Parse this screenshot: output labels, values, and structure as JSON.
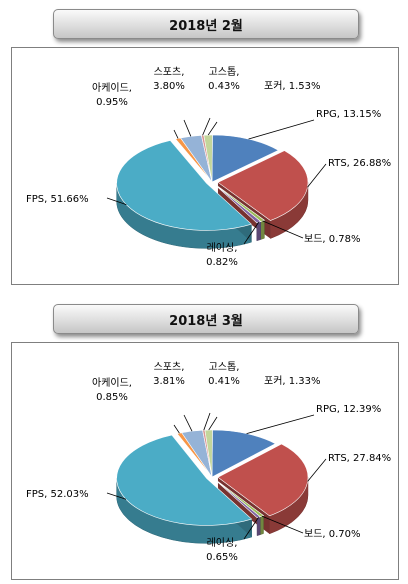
{
  "chart_data": [
    {
      "type": "pie",
      "title": "2018년 2월",
      "slices": [
        {
          "label": "RPG",
          "value": 13.15,
          "text": "RPG, 13.15%",
          "color": "#4f81bd"
        },
        {
          "label": "RTS",
          "value": 26.88,
          "text": "RTS, 26.88%",
          "color": "#c0504d"
        },
        {
          "label": "보드",
          "value": 0.78,
          "text": "보드, 0.78%",
          "color": "#9bbb59"
        },
        {
          "label": "레이싱",
          "value": 0.82,
          "text": "레이싱,|0.82%",
          "color": "#8064a2"
        },
        {
          "label": "FPS",
          "value": 51.66,
          "text": "FPS, 51.66%",
          "color": "#4bacc6"
        },
        {
          "label": "아케이드",
          "value": 0.95,
          "text": "아케이드,|0.95%",
          "color": "#f79646"
        },
        {
          "label": "스포츠",
          "value": 3.8,
          "text": "스포츠,|3.80%",
          "color": "#95b3d7"
        },
        {
          "label": "고스톱",
          "value": 0.43,
          "text": "고스톱,|0.43%",
          "color": "#d99694"
        },
        {
          "label": "포커",
          "value": 1.53,
          "text": "포커, 1.53%",
          "color": "#c3d69b"
        }
      ]
    },
    {
      "type": "pie",
      "title": "2018년 3월",
      "slices": [
        {
          "label": "RPG",
          "value": 12.39,
          "text": "RPG, 12.39%",
          "color": "#4f81bd"
        },
        {
          "label": "RTS",
          "value": 27.84,
          "text": "RTS, 27.84%",
          "color": "#c0504d"
        },
        {
          "label": "보드",
          "value": 0.7,
          "text": "보드, 0.70%",
          "color": "#9bbb59"
        },
        {
          "label": "레이싱",
          "value": 0.65,
          "text": "레이싱,|0.65%",
          "color": "#8064a2"
        },
        {
          "label": "FPS",
          "value": 52.03,
          "text": "FPS, 52.03%",
          "color": "#4bacc6"
        },
        {
          "label": "아케이드",
          "value": 0.85,
          "text": "아케이드,|0.85%",
          "color": "#f79646"
        },
        {
          "label": "스포츠",
          "value": 3.81,
          "text": "스포츠,|3.81%",
          "color": "#95b3d7"
        },
        {
          "label": "고스톱",
          "value": 0.41,
          "text": "고스톱,|0.41%",
          "color": "#d99694"
        },
        {
          "label": "포커",
          "value": 1.33,
          "text": "포커, 1.33%",
          "color": "#c3d69b"
        }
      ]
    }
  ]
}
